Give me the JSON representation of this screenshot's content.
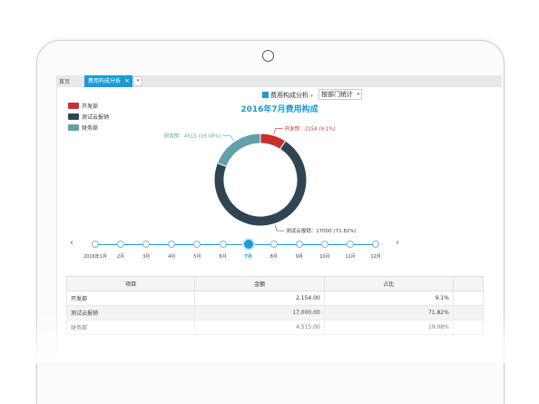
{
  "tabs": {
    "home": "首页",
    "active": "费用构成分析",
    "close": "×",
    "dropdown": "▾"
  },
  "toolbar": {
    "view_label": "费用构成分析",
    "view_caret": "▾",
    "mode_value": "按部门统计",
    "mode_caret": "▾"
  },
  "legend": [
    {
      "label": "开发部",
      "color": "#c8302c"
    },
    {
      "label": "测试云报销",
      "color": "#2f4554"
    },
    {
      "label": "财务部",
      "color": "#61a0a8"
    }
  ],
  "chart_data": {
    "type": "pie",
    "title": "2016年7月费用构成",
    "slices": [
      {
        "name": "开发部",
        "value": 2154,
        "percent": 9.1,
        "label": "开发部：2154 (9.1%)",
        "color": "#c8302c"
      },
      {
        "name": "测试云报销",
        "value": 17000,
        "percent": 71.82,
        "label": "测试云报销：17000 (71.82%)",
        "color": "#2f4554"
      },
      {
        "name": "财务部",
        "value": 4515,
        "percent": 19.08,
        "label": "财务部：4515 (19.08%)",
        "color": "#61a0a8"
      }
    ]
  },
  "timeline": {
    "prev": "‹",
    "next": "›",
    "months": [
      "2016年1月",
      "2月",
      "3月",
      "4月",
      "5月",
      "6月",
      "7月",
      "8月",
      "9月",
      "10月",
      "11月",
      "12月"
    ],
    "active": "7月"
  },
  "table": {
    "headers": [
      "项目",
      "金额",
      "占比"
    ],
    "rows": [
      [
        "开发部",
        "2,154.00",
        "9.1%"
      ],
      [
        "测试云报销",
        "17,000.00",
        "71.82%"
      ],
      [
        "财务部",
        "4,515.00",
        "19.08%"
      ]
    ]
  }
}
